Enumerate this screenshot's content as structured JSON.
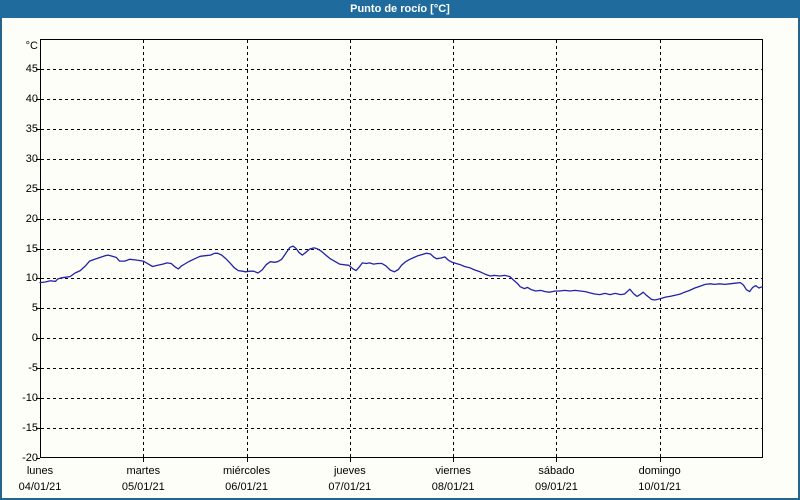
{
  "window": {
    "title": "Punto de rocío [°C]"
  },
  "colors": {
    "titlebar_bg": "#1f6b9e",
    "title_text": "#ffffff",
    "window_border": "#25648c",
    "background": "#fdfef8",
    "grid": "#000000",
    "axis": "#000000",
    "line": "#2323aa"
  },
  "chart_data": {
    "type": "line",
    "title": "Punto de rocío [°C]",
    "xlabel": "",
    "ylabel": "°C",
    "ylim": [
      -20,
      50
    ],
    "y_ticks": [
      45,
      40,
      35,
      30,
      25,
      20,
      15,
      10,
      5,
      0,
      -5,
      -10,
      -15,
      -20
    ],
    "grid": "dashed",
    "legend": "none",
    "x_days": [
      {
        "label": "lunes",
        "date": "04/01/21"
      },
      {
        "label": "martes",
        "date": "05/01/21"
      },
      {
        "label": "miércoles",
        "date": "06/01/21"
      },
      {
        "label": "jueves",
        "date": "07/01/21"
      },
      {
        "label": "viernes",
        "date": "08/01/21"
      },
      {
        "label": "sábado",
        "date": "09/01/21"
      },
      {
        "label": "domingo",
        "date": "10/01/21"
      }
    ],
    "series": [
      {
        "name": "Punto de rocío",
        "color": "#2323aa",
        "x_unit": "days_from_monday_00h",
        "points": [
          [
            0.0,
            9.3
          ],
          [
            0.05,
            9.4
          ],
          [
            0.1,
            9.6
          ],
          [
            0.15,
            9.5
          ],
          [
            0.17,
            9.9
          ],
          [
            0.21,
            10.1
          ],
          [
            0.25,
            10.2
          ],
          [
            0.29,
            10.3
          ],
          [
            0.34,
            10.9
          ],
          [
            0.39,
            11.3
          ],
          [
            0.44,
            12.1
          ],
          [
            0.48,
            12.9
          ],
          [
            0.53,
            13.2
          ],
          [
            0.58,
            13.5
          ],
          [
            0.63,
            13.8
          ],
          [
            0.66,
            13.9
          ],
          [
            0.7,
            13.7
          ],
          [
            0.74,
            13.5
          ],
          [
            0.77,
            12.9
          ],
          [
            0.82,
            12.9
          ],
          [
            0.87,
            13.2
          ],
          [
            0.92,
            13.1
          ],
          [
            0.96,
            13.0
          ],
          [
            1.0,
            12.9
          ],
          [
            1.05,
            12.4
          ],
          [
            1.09,
            12.0
          ],
          [
            1.14,
            12.2
          ],
          [
            1.19,
            12.4
          ],
          [
            1.23,
            12.6
          ],
          [
            1.27,
            12.5
          ],
          [
            1.31,
            11.9
          ],
          [
            1.34,
            11.6
          ],
          [
            1.37,
            12.1
          ],
          [
            1.41,
            12.5
          ],
          [
            1.45,
            12.9
          ],
          [
            1.5,
            13.3
          ],
          [
            1.55,
            13.7
          ],
          [
            1.6,
            13.8
          ],
          [
            1.65,
            13.9
          ],
          [
            1.69,
            14.2
          ],
          [
            1.72,
            14.2
          ],
          [
            1.76,
            13.9
          ],
          [
            1.8,
            13.3
          ],
          [
            1.84,
            12.6
          ],
          [
            1.88,
            11.8
          ],
          [
            1.92,
            11.3
          ],
          [
            1.96,
            11.2
          ],
          [
            1.99,
            11.1
          ],
          [
            2.03,
            11.2
          ],
          [
            2.07,
            11.2
          ],
          [
            2.11,
            10.9
          ],
          [
            2.15,
            11.4
          ],
          [
            2.19,
            12.3
          ],
          [
            2.23,
            12.8
          ],
          [
            2.27,
            12.7
          ],
          [
            2.3,
            12.8
          ],
          [
            2.34,
            13.2
          ],
          [
            2.38,
            14.2
          ],
          [
            2.42,
            15.2
          ],
          [
            2.45,
            15.4
          ],
          [
            2.48,
            15.0
          ],
          [
            2.51,
            14.3
          ],
          [
            2.54,
            13.9
          ],
          [
            2.57,
            14.3
          ],
          [
            2.61,
            14.9
          ],
          [
            2.65,
            15.1
          ],
          [
            2.68,
            15.0
          ],
          [
            2.72,
            14.6
          ],
          [
            2.76,
            14.0
          ],
          [
            2.81,
            13.3
          ],
          [
            2.86,
            12.8
          ],
          [
            2.9,
            12.4
          ],
          [
            2.94,
            12.3
          ],
          [
            2.99,
            12.2
          ],
          [
            3.03,
            11.6
          ],
          [
            3.06,
            11.3
          ],
          [
            3.09,
            11.9
          ],
          [
            3.12,
            12.6
          ],
          [
            3.16,
            12.5
          ],
          [
            3.19,
            12.6
          ],
          [
            3.23,
            12.4
          ],
          [
            3.27,
            12.5
          ],
          [
            3.31,
            12.5
          ],
          [
            3.35,
            12.1
          ],
          [
            3.39,
            11.4
          ],
          [
            3.43,
            11.1
          ],
          [
            3.47,
            11.5
          ],
          [
            3.5,
            12.2
          ],
          [
            3.54,
            12.8
          ],
          [
            3.58,
            13.2
          ],
          [
            3.62,
            13.5
          ],
          [
            3.66,
            13.8
          ],
          [
            3.7,
            14.0
          ],
          [
            3.74,
            14.2
          ],
          [
            3.78,
            14.1
          ],
          [
            3.81,
            13.6
          ],
          [
            3.84,
            13.3
          ],
          [
            3.88,
            13.4
          ],
          [
            3.92,
            13.6
          ],
          [
            3.95,
            13.1
          ],
          [
            3.99,
            12.7
          ],
          [
            4.03,
            12.5
          ],
          [
            4.07,
            12.3
          ],
          [
            4.11,
            12.0
          ],
          [
            4.16,
            11.8
          ],
          [
            4.21,
            11.4
          ],
          [
            4.26,
            11.1
          ],
          [
            4.31,
            10.7
          ],
          [
            4.36,
            10.4
          ],
          [
            4.4,
            10.5
          ],
          [
            4.45,
            10.4
          ],
          [
            4.5,
            10.5
          ],
          [
            4.55,
            10.3
          ],
          [
            4.58,
            9.8
          ],
          [
            4.62,
            9.2
          ],
          [
            4.65,
            8.6
          ],
          [
            4.69,
            8.3
          ],
          [
            4.72,
            8.5
          ],
          [
            4.76,
            8.1
          ],
          [
            4.8,
            7.9
          ],
          [
            4.85,
            8.0
          ],
          [
            4.89,
            7.8
          ],
          [
            4.93,
            7.7
          ],
          [
            4.96,
            7.8
          ],
          [
            4.99,
            7.9
          ],
          [
            5.03,
            7.9
          ],
          [
            5.08,
            8.0
          ],
          [
            5.13,
            7.9
          ],
          [
            5.18,
            8.0
          ],
          [
            5.23,
            7.9
          ],
          [
            5.28,
            7.8
          ],
          [
            5.32,
            7.6
          ],
          [
            5.37,
            7.4
          ],
          [
            5.42,
            7.3
          ],
          [
            5.47,
            7.5
          ],
          [
            5.52,
            7.3
          ],
          [
            5.57,
            7.5
          ],
          [
            5.62,
            7.3
          ],
          [
            5.66,
            7.4
          ],
          [
            5.71,
            8.2
          ],
          [
            5.75,
            7.4
          ],
          [
            5.78,
            7.0
          ],
          [
            5.81,
            7.3
          ],
          [
            5.84,
            7.7
          ],
          [
            5.87,
            7.2
          ],
          [
            5.9,
            6.8
          ],
          [
            5.92,
            6.5
          ],
          [
            5.95,
            6.4
          ],
          [
            5.98,
            6.5
          ],
          [
            6.02,
            6.7
          ],
          [
            6.06,
            6.9
          ],
          [
            6.1,
            7.0
          ],
          [
            6.15,
            7.2
          ],
          [
            6.2,
            7.4
          ],
          [
            6.24,
            7.7
          ],
          [
            6.29,
            8.0
          ],
          [
            6.34,
            8.4
          ],
          [
            6.39,
            8.7
          ],
          [
            6.44,
            9.0
          ],
          [
            6.49,
            9.1
          ],
          [
            6.53,
            9.0
          ],
          [
            6.58,
            9.1
          ],
          [
            6.63,
            9.0
          ],
          [
            6.68,
            9.1
          ],
          [
            6.73,
            9.2
          ],
          [
            6.78,
            9.3
          ],
          [
            6.81,
            8.9
          ],
          [
            6.84,
            8.1
          ],
          [
            6.87,
            7.8
          ],
          [
            6.9,
            8.5
          ],
          [
            6.93,
            8.8
          ],
          [
            6.96,
            8.4
          ],
          [
            6.99,
            8.6
          ]
        ]
      }
    ]
  }
}
